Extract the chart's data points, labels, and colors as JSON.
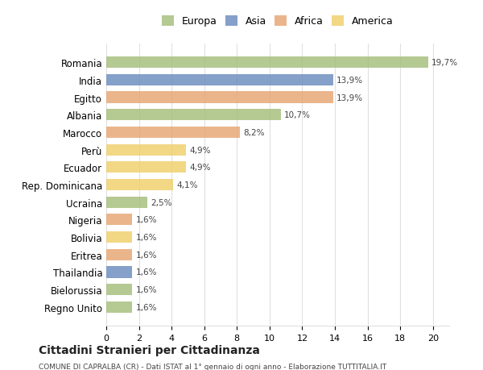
{
  "title": "Cittadini Stranieri per Cittadinanza",
  "subtitle": "COMUNE DI CAPRALBA (CR) - Dati ISTAT al 1° gennaio di ogni anno - Elaborazione TUTTITALIA.IT",
  "countries": [
    "Romania",
    "India",
    "Egitto",
    "Albania",
    "Marocco",
    "Perù",
    "Ecuador",
    "Rep. Dominicana",
    "Ucraina",
    "Nigeria",
    "Bolivia",
    "Eritrea",
    "Thailandia",
    "Bielorussia",
    "Regno Unito"
  ],
  "values": [
    19.7,
    13.9,
    13.9,
    10.7,
    8.2,
    4.9,
    4.9,
    4.1,
    2.5,
    1.6,
    1.6,
    1.6,
    1.6,
    1.6,
    1.6
  ],
  "labels": [
    "19,7%",
    "13,9%",
    "13,9%",
    "10,7%",
    "8,2%",
    "4,9%",
    "4,9%",
    "4,1%",
    "2,5%",
    "1,6%",
    "1,6%",
    "1,6%",
    "1,6%",
    "1,6%",
    "1,6%"
  ],
  "continents": [
    "Europa",
    "Asia",
    "Africa",
    "Europa",
    "Africa",
    "America",
    "America",
    "America",
    "Europa",
    "Africa",
    "America",
    "Africa",
    "Asia",
    "Europa",
    "Europa"
  ],
  "continent_colors": {
    "Europa": "#a8c080",
    "Asia": "#7090c0",
    "Africa": "#e8a878",
    "America": "#f0d070"
  },
  "legend_order": [
    "Europa",
    "Asia",
    "Africa",
    "America"
  ],
  "legend_colors": [
    "#a8c080",
    "#7090c0",
    "#e8a878",
    "#f0d070"
  ],
  "background_color": "#ffffff",
  "grid_color": "#e0e0e0",
  "xlim": [
    0,
    21
  ],
  "xticks": [
    0,
    2,
    4,
    6,
    8,
    10,
    12,
    14,
    16,
    18,
    20
  ]
}
